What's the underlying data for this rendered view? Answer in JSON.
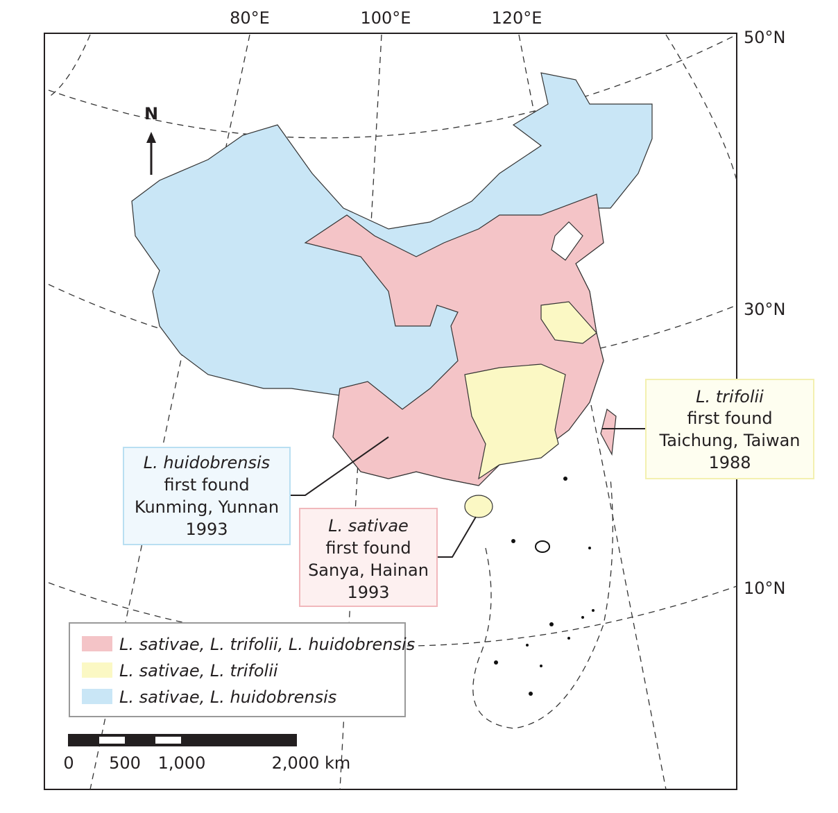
{
  "graticule": {
    "longitudes": [
      "80°E",
      "100°E",
      "120°E"
    ],
    "latitudes": [
      "50°N",
      "30°N",
      "10°N"
    ]
  },
  "north_arrow": "N",
  "callouts": [
    {
      "species": "L. huidobrensis",
      "lines": [
        "first found",
        "Kunming, Yunnan",
        "1993"
      ]
    },
    {
      "species": "L. sativae",
      "lines": [
        "first found",
        "Sanya, Hainan",
        "1993"
      ]
    },
    {
      "species": "L. trifolii",
      "lines": [
        "first found",
        "Taichung, Taiwan",
        "1988"
      ]
    }
  ],
  "legend": [
    {
      "label": "L. sativae, L. trifolii, L. huidobrensis",
      "color": "#f4c4c7"
    },
    {
      "label": "L. sativae, L. trifolii",
      "color": "#fbf8c4"
    },
    {
      "label": "L. sativae, L. huidobrensis",
      "color": "#c9e6f6"
    }
  ],
  "scale_bar": {
    "ticks": [
      "0",
      "500",
      "1,000",
      "2,000"
    ],
    "unit": "km"
  }
}
